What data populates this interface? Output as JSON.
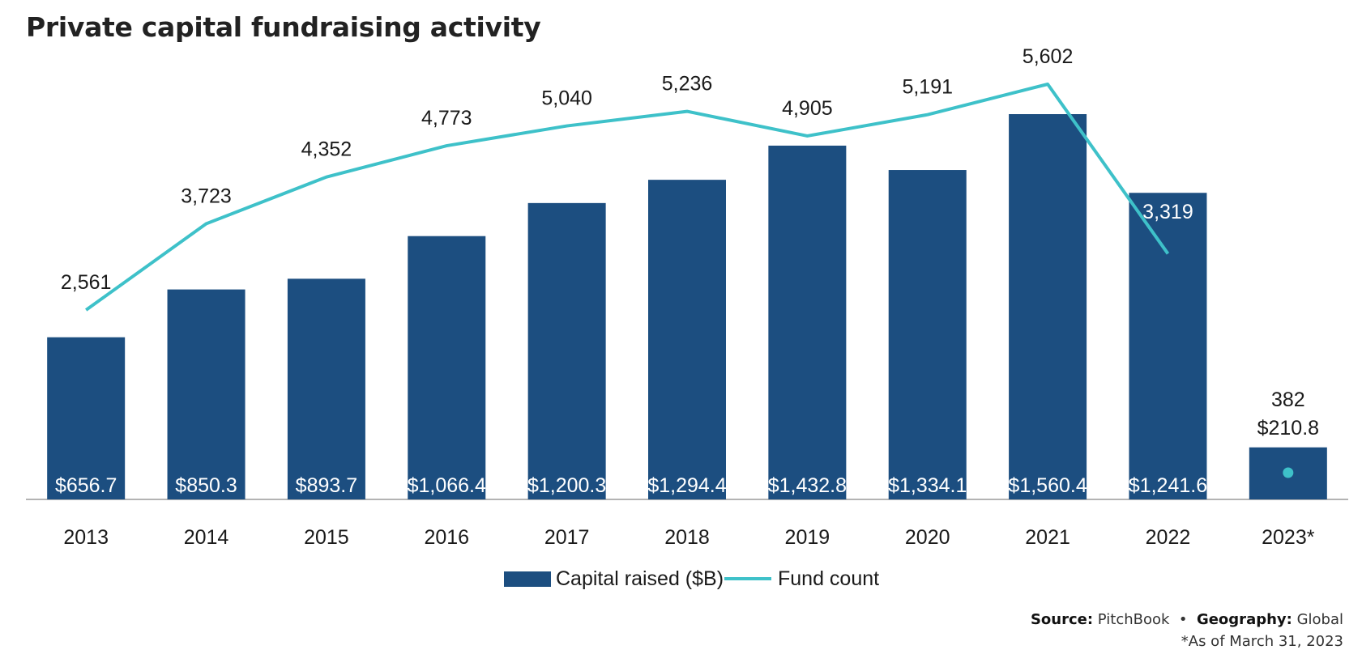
{
  "chart_data": {
    "type": "bar",
    "title": "Private capital fundraising activity",
    "categories": [
      "2013",
      "2014",
      "2015",
      "2016",
      "2017",
      "2018",
      "2019",
      "2020",
      "2021",
      "2022",
      "2023*"
    ],
    "series": [
      {
        "name": "Capital raised ($B)",
        "type": "bar",
        "values": [
          656.7,
          850.3,
          893.7,
          1066.4,
          1200.3,
          1294.4,
          1432.8,
          1334.1,
          1560.4,
          1241.6,
          210.8
        ],
        "labels": [
          "$656.7",
          "$850.3",
          "$893.7",
          "$1,066.4",
          "$1,200.3",
          "$1,294.4",
          "$1,432.8",
          "$1,334.1",
          "$1,560.4",
          "$1,241.6",
          "$210.8"
        ],
        "color": "#1c4e80"
      },
      {
        "name": "Fund count",
        "type": "line",
        "values": [
          2561,
          3723,
          4352,
          4773,
          5040,
          5236,
          4905,
          5191,
          5602,
          3319,
          382
        ],
        "labels": [
          "2,561",
          "3,723",
          "4,352",
          "4,773",
          "5,040",
          "5,236",
          "4,905",
          "5,191",
          "5,602",
          "3,319",
          "382"
        ],
        "color": "#3ec1c9"
      }
    ],
    "legend": {
      "position": "bottom-center"
    },
    "grid": false
  },
  "source": {
    "source_label": "Source:",
    "source_value": "PitchBook",
    "separator": "•",
    "geography_label": "Geography:",
    "geography_value": "Global",
    "footnote": "*As of March 31, 2023"
  }
}
